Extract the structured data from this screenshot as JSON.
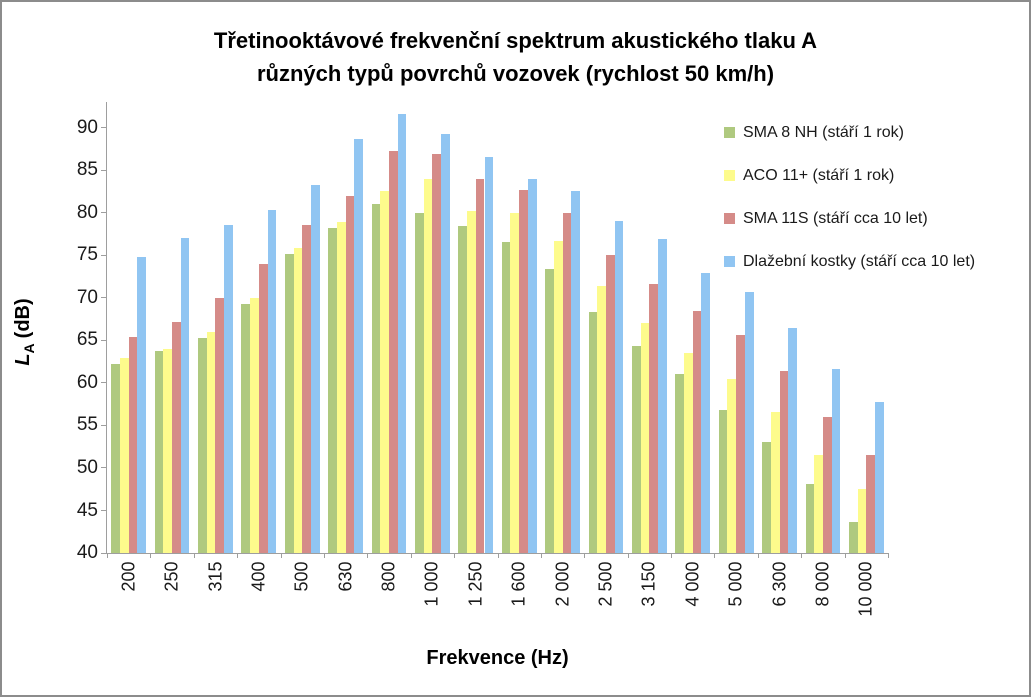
{
  "title": {
    "line1": "Třetinooktávové frekvenční spektrum akustického tlaku A",
    "line2": "různých typů povrchů vozovek (rychlost 50 km/h)"
  },
  "chart_data": {
    "type": "bar",
    "title": "Třetinooktávové frekvenční spektrum akustického tlaku A různých typů povrchů vozovek (rychlost 50 km/h)",
    "xlabel": "Frekvence (Hz)",
    "ylabel": "LA (dB)",
    "ylabel_parts": {
      "symbol": "L",
      "subscript": "A",
      "unit": "(dB)"
    },
    "ylim": [
      40,
      93
    ],
    "yticks": [
      40,
      45,
      50,
      55,
      60,
      65,
      70,
      75,
      80,
      85,
      90
    ],
    "grid": false,
    "legend_position": "top-right",
    "categories": [
      "200",
      "250",
      "315",
      "400",
      "500",
      "630",
      "800",
      "1 000",
      "1 250",
      "1 600",
      "2 000",
      "2 500",
      "3 150",
      "4 000",
      "5 000",
      "6 300",
      "8 000",
      "10 000"
    ],
    "series": [
      {
        "name": "SMA 8 NH (stáří 1 rok)",
        "key": "sma-8-nh",
        "color": "#AFC97F",
        "values": [
          62.2,
          63.7,
          65.3,
          69.3,
          75.1,
          78.2,
          81.0,
          80.0,
          78.4,
          76.6,
          73.4,
          68.3,
          64.3,
          61.0,
          56.8,
          53.0,
          48.1,
          43.7
        ]
      },
      {
        "name": "ACO 11+ (stáří 1 rok)",
        "key": "aco-11plus",
        "color": "#FDFB8C",
        "values": [
          62.9,
          64.0,
          66.0,
          70.0,
          75.9,
          78.9,
          82.5,
          84.0,
          80.2,
          79.9,
          76.7,
          71.4,
          67.0,
          63.5,
          60.4,
          56.6,
          51.5,
          47.5
        ]
      },
      {
        "name": "SMA 11S (stáří cca 10 let)",
        "key": "sma-11s",
        "color": "#D58B88",
        "values": [
          65.4,
          67.2,
          70.0,
          74.0,
          78.6,
          82.0,
          87.3,
          86.9,
          84.0,
          82.7,
          79.9,
          75.0,
          71.6,
          68.4,
          65.6,
          61.4,
          56.0,
          51.5
        ]
      },
      {
        "name": "Dlažební kostky (stáří cca 10 let)",
        "key": "dlazebni-kostky",
        "color": "#90C5F2",
        "values": [
          74.8,
          77.0,
          78.6,
          80.3,
          83.3,
          88.7,
          91.6,
          89.2,
          86.5,
          83.9,
          82.5,
          79.0,
          76.9,
          72.9,
          70.7,
          66.4,
          61.6,
          57.7
        ]
      }
    ]
  }
}
